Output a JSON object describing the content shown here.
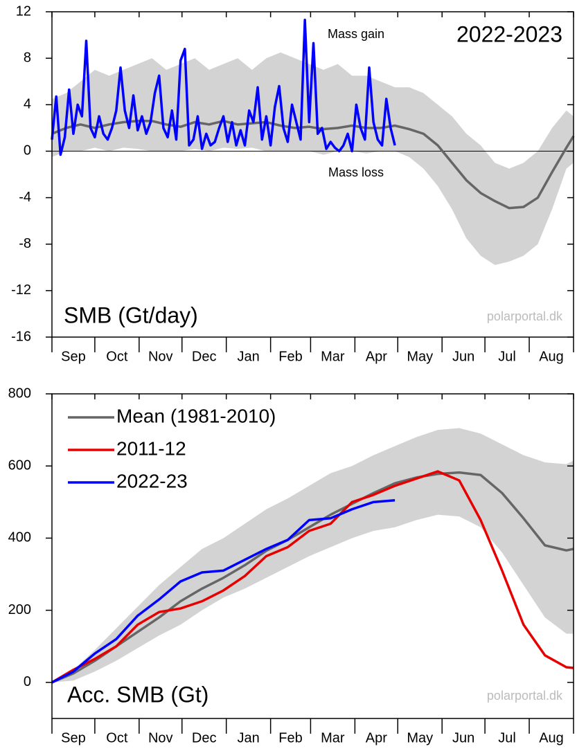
{
  "chart_data": [
    {
      "type": "line",
      "annotations": [
        "Mass gain",
        "2022-2023",
        "Mass loss",
        "SMB (Gt/day)",
        "polarportal.dk"
      ],
      "categories": [
        "Sep",
        "Oct",
        "Nov",
        "Dec",
        "Jan",
        "Feb",
        "Mar",
        "Apr",
        "May",
        "Jun",
        "Jul",
        "Aug"
      ],
      "xlim": [
        0,
        365
      ],
      "xticks": [
        0,
        30,
        61,
        91,
        122,
        153,
        181,
        212,
        242,
        273,
        303,
        334,
        365
      ],
      "ylim": [
        -16,
        12
      ],
      "yticks": [
        -16,
        -12,
        -8,
        -4,
        0,
        4,
        8,
        12
      ],
      "zero_line": true,
      "band": {
        "color": "#d3d3d3",
        "x": [
          0,
          10,
          20,
          30,
          40,
          50,
          60,
          70,
          80,
          90,
          100,
          110,
          120,
          130,
          140,
          150,
          160,
          170,
          180,
          190,
          200,
          210,
          220,
          230,
          240,
          250,
          260,
          270,
          280,
          290,
          300,
          310,
          320,
          330,
          340,
          350,
          360,
          365
        ],
        "high": [
          4.5,
          5,
          6,
          7,
          6.5,
          7,
          7.5,
          8,
          7,
          7.5,
          8,
          7,
          7.5,
          8,
          7,
          8,
          8.5,
          8,
          7.5,
          7,
          7.5,
          6.5,
          6.5,
          6,
          5.5,
          5.5,
          5,
          4,
          3,
          1.5,
          0.5,
          -1,
          -1.5,
          -1,
          0,
          2,
          3.5,
          3
        ],
        "low": [
          -0.5,
          0,
          0,
          0.3,
          0,
          0.3,
          0.2,
          0,
          0,
          0,
          0.2,
          0,
          0.3,
          0.2,
          0.3,
          0,
          0,
          0,
          0,
          -0.3,
          0,
          0,
          -0.2,
          0,
          0,
          -0.5,
          -1.5,
          -3,
          -5,
          -7.5,
          -9,
          -9.8,
          -9.5,
          -9,
          -8,
          -5,
          -1.5,
          -1
        ]
      },
      "series": [
        {
          "color": "#666666",
          "x": [
            0,
            10,
            20,
            30,
            40,
            50,
            60,
            70,
            80,
            90,
            100,
            110,
            120,
            130,
            140,
            150,
            160,
            170,
            180,
            190,
            200,
            210,
            220,
            230,
            240,
            250,
            260,
            270,
            280,
            290,
            300,
            310,
            320,
            330,
            340,
            350,
            360,
            365
          ],
          "values": [
            1.5,
            2.0,
            2.3,
            2.0,
            2.3,
            2.5,
            2.6,
            2.6,
            2.3,
            2.1,
            2.5,
            2.3,
            2.6,
            2.3,
            2.4,
            2.5,
            2.2,
            2.0,
            2.1,
            1.9,
            2.0,
            2.2,
            2.0,
            2.0,
            2.2,
            1.9,
            1.5,
            0.5,
            -1.0,
            -2.5,
            -3.6,
            -4.3,
            -4.9,
            -4.8,
            -4.0,
            -1.8,
            0.3,
            1.3
          ]
        },
        {
          "color": "#0000ff",
          "x": [
            0,
            3,
            6,
            9,
            12,
            15,
            18,
            21,
            24,
            27,
            30,
            33,
            36,
            39,
            42,
            45,
            48,
            51,
            54,
            57,
            60,
            63,
            66,
            69,
            72,
            75,
            78,
            81,
            84,
            87,
            90,
            93,
            96,
            99,
            102,
            105,
            108,
            111,
            114,
            117,
            120,
            123,
            126,
            129,
            132,
            135,
            138,
            141,
            144,
            147,
            150,
            153,
            156,
            159,
            162,
            165,
            168,
            171,
            174,
            177,
            180,
            183,
            186,
            189,
            192,
            195,
            198,
            201,
            204,
            207,
            210,
            213,
            216,
            219,
            222,
            225,
            228,
            231,
            234,
            237,
            240
          ],
          "values": [
            1.0,
            4.7,
            -0.3,
            1.2,
            5.3,
            1.5,
            4.0,
            3.0,
            9.5,
            2.0,
            1.2,
            3.0,
            1.5,
            1.0,
            2.0,
            3.5,
            7.2,
            3.5,
            2.0,
            4.8,
            1.8,
            3.0,
            1.5,
            2.5,
            5.0,
            6.5,
            2.0,
            1.2,
            3.5,
            1.0,
            7.8,
            8.8,
            0.5,
            1.0,
            3.0,
            0.2,
            1.5,
            0.5,
            0.8,
            2.0,
            3.0,
            0.8,
            2.5,
            0.5,
            1.8,
            0.5,
            3.5,
            2.5,
            5.5,
            1.0,
            3.0,
            0.5,
            3.8,
            5.6,
            2.0,
            0.8,
            4.0,
            2.5,
            1.0,
            11.3,
            2.5,
            9.3,
            1.5,
            2.0,
            0.2,
            0.8,
            0.3,
            0.0,
            0.5,
            1.5,
            0.0,
            4.0,
            2.0,
            1.0,
            7.2,
            2.5,
            1.0,
            0.5,
            4.5,
            2.0,
            0.5
          ]
        }
      ]
    },
    {
      "type": "line",
      "annotations": [
        "Acc. SMB (Gt)",
        "polarportal.dk"
      ],
      "categories": [
        "Sep",
        "Oct",
        "Nov",
        "Dec",
        "Jan",
        "Feb",
        "Mar",
        "Apr",
        "May",
        "Jun",
        "Jul",
        "Aug"
      ],
      "xlim": [
        0,
        365
      ],
      "xticks": [
        0,
        30,
        61,
        91,
        122,
        153,
        181,
        212,
        242,
        273,
        303,
        334,
        365
      ],
      "ylim": [
        -100,
        800
      ],
      "yticks": [
        0,
        200,
        400,
        600,
        800
      ],
      "legend": "upper left",
      "band": {
        "color": "#d3d3d3",
        "x": [
          0,
          15,
          30,
          45,
          60,
          75,
          90,
          105,
          120,
          135,
          150,
          165,
          180,
          195,
          210,
          225,
          240,
          255,
          270,
          285,
          300,
          315,
          330,
          345,
          360,
          365
        ],
        "high": [
          0,
          35,
          90,
          150,
          210,
          270,
          320,
          370,
          400,
          440,
          480,
          510,
          545,
          580,
          600,
          630,
          655,
          680,
          700,
          705,
          690,
          660,
          630,
          610,
          605,
          615
        ],
        "low": [
          0,
          5,
          30,
          60,
          95,
          130,
          160,
          200,
          235,
          260,
          290,
          320,
          350,
          375,
          400,
          420,
          430,
          450,
          465,
          460,
          430,
          360,
          270,
          180,
          135,
          135
        ]
      },
      "series": [
        {
          "name": "Mean (1981-2010)",
          "color": "#666666",
          "x": [
            0,
            15,
            30,
            45,
            60,
            75,
            90,
            105,
            120,
            135,
            150,
            165,
            180,
            195,
            210,
            225,
            240,
            255,
            270,
            285,
            300,
            315,
            330,
            345,
            360,
            365
          ],
          "values": [
            0,
            25,
            60,
            100,
            140,
            180,
            225,
            260,
            290,
            325,
            365,
            395,
            430,
            465,
            495,
            525,
            552,
            568,
            578,
            582,
            575,
            525,
            455,
            380,
            366,
            370
          ]
        },
        {
          "name": "2011-12",
          "color": "#e60000",
          "x": [
            0,
            15,
            30,
            45,
            60,
            75,
            90,
            105,
            120,
            135,
            150,
            165,
            180,
            195,
            210,
            225,
            240,
            255,
            270,
            285,
            300,
            315,
            330,
            345,
            360,
            365
          ],
          "values": [
            0,
            35,
            65,
            100,
            160,
            195,
            205,
            225,
            255,
            295,
            350,
            375,
            420,
            440,
            500,
            520,
            545,
            565,
            585,
            560,
            450,
            310,
            160,
            75,
            42,
            40
          ]
        },
        {
          "name": "2022-23",
          "color": "#0000ff",
          "x": [
            0,
            15,
            30,
            45,
            60,
            75,
            90,
            105,
            120,
            135,
            150,
            165,
            180,
            195,
            210,
            225,
            240
          ],
          "values": [
            0,
            30,
            80,
            120,
            185,
            230,
            280,
            305,
            310,
            340,
            370,
            395,
            450,
            455,
            480,
            500,
            505
          ]
        }
      ]
    }
  ]
}
